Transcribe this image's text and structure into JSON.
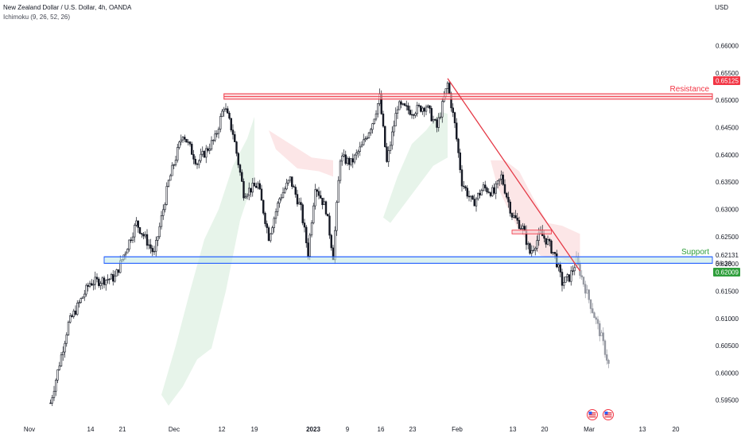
{
  "header": {
    "symbol_line": "New Zealand Dollar / U.S. Dollar, 4h, OANDA",
    "indicator_line": "Ichimoku (9, 26, 52, 26)",
    "currency": "USD"
  },
  "chart_data": {
    "type": "candlestick",
    "y_ticks": [
      "0.66000",
      "0.65500",
      "0.65000",
      "0.64500",
      "0.64000",
      "0.63500",
      "0.63000",
      "0.62500",
      "0.62000",
      "0.61500",
      "0.61000",
      "0.60500",
      "0.60000",
      "0.59500"
    ],
    "ylim": [
      0.5935,
      0.663
    ],
    "x_ticks": [
      "Nov",
      "14",
      "21",
      "Dec",
      "12",
      "19",
      "2023",
      "9",
      "16",
      "23",
      "Feb",
      "13",
      "20",
      "Mar",
      "13",
      "20"
    ],
    "x_tick_bold": "2023",
    "price_path": [
      {
        "t": 9,
        "p": 0.5945
      },
      {
        "t": 14,
        "p": 0.609
      },
      {
        "t": 20,
        "p": 0.6165
      },
      {
        "t": 27,
        "p": 0.6175
      },
      {
        "t": 33,
        "p": 0.6275
      },
      {
        "t": 38,
        "p": 0.6218
      },
      {
        "t": 42,
        "p": 0.635
      },
      {
        "t": 46,
        "p": 0.644
      },
      {
        "t": 50,
        "p": 0.6385
      },
      {
        "t": 55,
        "p": 0.643
      },
      {
        "t": 57.5,
        "p": 0.649
      },
      {
        "t": 60,
        "p": 0.644
      },
      {
        "t": 63,
        "p": 0.633
      },
      {
        "t": 67,
        "p": 0.6345
      },
      {
        "t": 70,
        "p": 0.625
      },
      {
        "t": 73,
        "p": 0.632
      },
      {
        "t": 76,
        "p": 0.6355
      },
      {
        "t": 79,
        "p": 0.63
      },
      {
        "t": 81,
        "p": 0.622
      },
      {
        "t": 83,
        "p": 0.6345
      },
      {
        "t": 86,
        "p": 0.63
      },
      {
        "t": 88,
        "p": 0.6215
      },
      {
        "t": 90,
        "p": 0.6395
      },
      {
        "t": 93,
        "p": 0.6385
      },
      {
        "t": 96,
        "p": 0.6415
      },
      {
        "t": 99,
        "p": 0.646
      },
      {
        "t": 101,
        "p": 0.6505
      },
      {
        "t": 103,
        "p": 0.6385
      },
      {
        "t": 106,
        "p": 0.649
      },
      {
        "t": 110,
        "p": 0.648
      },
      {
        "t": 114,
        "p": 0.649
      },
      {
        "t": 117,
        "p": 0.645
      },
      {
        "t": 120,
        "p": 0.653
      },
      {
        "t": 122,
        "p": 0.6455
      },
      {
        "t": 124,
        "p": 0.635
      },
      {
        "t": 127,
        "p": 0.631
      },
      {
        "t": 130,
        "p": 0.634
      },
      {
        "t": 133,
        "p": 0.633
      },
      {
        "t": 135,
        "p": 0.636
      },
      {
        "t": 138,
        "p": 0.629
      },
      {
        "t": 141,
        "p": 0.6265
      },
      {
        "t": 143,
        "p": 0.622
      },
      {
        "t": 146,
        "p": 0.6255
      },
      {
        "t": 148,
        "p": 0.624
      },
      {
        "t": 150,
        "p": 0.6215
      },
      {
        "t": 152,
        "p": 0.6165
      },
      {
        "t": 154,
        "p": 0.6175
      },
      {
        "t": 156,
        "p": 0.6205
      },
      {
        "t": 158,
        "p": 0.6165
      },
      {
        "t": 161,
        "p": 0.6105
      },
      {
        "t": 163,
        "p": 0.6065
      },
      {
        "t": 165,
        "p": 0.6015
      }
    ],
    "faded_from_t": 156,
    "series_colors": {
      "candle": "#131722",
      "faded_candle": "#9598a1",
      "cloud_green": "#e3f2e6",
      "cloud_red": "#fbe2e3"
    },
    "cloud": {
      "green": [
        [
          [
            40,
            0.596
          ],
          [
            44,
            0.605
          ],
          [
            48,
            0.615
          ],
          [
            52,
            0.6245
          ],
          [
            56,
            0.63
          ],
          [
            60,
            0.638
          ],
          [
            64,
            0.643
          ],
          [
            66,
            0.647
          ],
          [
            66,
            0.636
          ],
          [
            62,
            0.628
          ],
          [
            58,
            0.615
          ],
          [
            54,
            0.6045
          ],
          [
            50,
            0.6025
          ],
          [
            46,
            0.5975
          ],
          [
            42,
            0.594
          ]
        ],
        [
          [
            102,
            0.6285
          ],
          [
            106,
            0.636
          ],
          [
            110,
            0.642
          ],
          [
            114,
            0.6445
          ],
          [
            118,
            0.648
          ],
          [
            120,
            0.6475
          ],
          [
            120,
            0.6395
          ],
          [
            116,
            0.638
          ],
          [
            112,
            0.6345
          ],
          [
            108,
            0.631
          ],
          [
            104,
            0.6275
          ]
        ]
      ],
      "red": [
        [
          [
            70,
            0.6445
          ],
          [
            76,
            0.642
          ],
          [
            82,
            0.6395
          ],
          [
            88,
            0.639
          ],
          [
            88,
            0.636
          ],
          [
            84,
            0.637
          ],
          [
            78,
            0.6375
          ],
          [
            72,
            0.641
          ]
        ],
        [
          [
            132,
            0.639
          ],
          [
            136,
            0.639
          ],
          [
            140,
            0.637
          ],
          [
            144,
            0.632
          ],
          [
            148,
            0.6275
          ],
          [
            152,
            0.627
          ],
          [
            157,
            0.6255
          ],
          [
            157,
            0.6195
          ],
          [
            152,
            0.621
          ],
          [
            146,
            0.6215
          ],
          [
            140,
            0.626
          ],
          [
            134,
            0.634
          ]
        ]
      ]
    },
    "resistance": {
      "label": "Resistance",
      "price": "0.65125",
      "zone": [
        0.6502,
        0.6512
      ],
      "t_start": 57.5,
      "color": "#f23645"
    },
    "support": {
      "label": "Support",
      "price": "0.62131",
      "price2": "0.62009",
      "countdown": "56:38",
      "zone": [
        0.6201,
        0.6213
      ],
      "t_start": 24,
      "color": "#089981",
      "line_color": "#2962ff"
    },
    "trendline": {
      "from": {
        "t": 120,
        "p": 0.654
      },
      "to": {
        "t": 157,
        "p": 0.6187
      },
      "color": "#e53946"
    },
    "mini_zone": {
      "t": [
        138,
        149
      ],
      "p": [
        0.6255,
        0.6262
      ]
    }
  }
}
